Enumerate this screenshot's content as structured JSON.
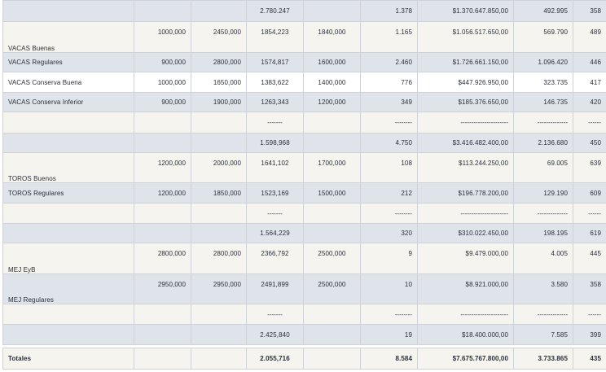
{
  "rows": {
    "r1": {
      "name": "",
      "c1": "",
      "c2": "",
      "c3": "2.780.247",
      "c4": "",
      "c5": "1.378",
      "c6": "$1.370.647.850,00",
      "c7": "492.995",
      "c8": "358"
    },
    "r2": {
      "name": "VACAS Buenas",
      "c1": "1000,000",
      "c2": "2450,000",
      "c3": "1854,223",
      "c4": "1840,000",
      "c5": "1.165",
      "c6": "$1.056.517.650,00",
      "c7": "569.790",
      "c8": "489"
    },
    "r3": {
      "name": "VACAS Regulares",
      "c1": "900,000",
      "c2": "2800,000",
      "c3": "1574,817",
      "c4": "1600,000",
      "c5": "2.460",
      "c6": "$1.726.661.150,00",
      "c7": "1.096.420",
      "c8": "446"
    },
    "r4": {
      "name": "VACAS Conserva Buena",
      "c1": "1000,000",
      "c2": "1650,000",
      "c3": "1383,622",
      "c4": "1400,000",
      "c5": "776",
      "c6": "$447.926.950,00",
      "c7": "323.735",
      "c8": "417"
    },
    "r5": {
      "name": "VACAS Conserva Inferior",
      "c1": "900,000",
      "c2": "1900,000",
      "c3": "1263,343",
      "c4": "1200,000",
      "c5": "349",
      "c6": "$185.376.650,00",
      "c7": "146.735",
      "c8": "420"
    },
    "r6": {
      "name": "",
      "c1": "",
      "c2": "",
      "c3": "-------",
      "c4": "",
      "c5": "--------",
      "c6": "----------------------",
      "c7": "--------------",
      "c8": "------"
    },
    "r7": {
      "name": "",
      "c1": "",
      "c2": "",
      "c3": "1.598,968",
      "c4": "",
      "c5": "4.750",
      "c6": "$3.416.482.400,00",
      "c7": "2.136.680",
      "c8": "450"
    },
    "r8": {
      "name": "TOROS Buenos",
      "c1": "1200,000",
      "c2": "2000,000",
      "c3": "1641,102",
      "c4": "1700,000",
      "c5": "108",
      "c6": "$113.244.250,00",
      "c7": "69.005",
      "c8": "639"
    },
    "r9": {
      "name": "TOROS Regulares",
      "c1": "1200,000",
      "c2": "1850,000",
      "c3": "1523,169",
      "c4": "1500,000",
      "c5": "212",
      "c6": "$196.778.200,00",
      "c7": "129.190",
      "c8": "609"
    },
    "r10": {
      "name": "",
      "c1": "",
      "c2": "",
      "c3": "-------",
      "c4": "",
      "c5": "--------",
      "c6": "----------------------",
      "c7": "--------------",
      "c8": "------"
    },
    "r11": {
      "name": "",
      "c1": "",
      "c2": "",
      "c3": "1.564,229",
      "c4": "",
      "c5": "320",
      "c6": "$310.022.450,00",
      "c7": "198.195",
      "c8": "619"
    },
    "r12": {
      "name": "MEJ EyB",
      "c1": "2800,000",
      "c2": "2800,000",
      "c3": "2366,792",
      "c4": "2500,000",
      "c5": "9",
      "c6": "$9.479.000,00",
      "c7": "4.005",
      "c8": "445"
    },
    "r13": {
      "name": "MEJ Regulares",
      "c1": "2950,000",
      "c2": "2950,000",
      "c3": "2491,899",
      "c4": "2500,000",
      "c5": "10",
      "c6": "$8.921.000,00",
      "c7": "3.580",
      "c8": "358"
    },
    "r14": {
      "name": "",
      "c1": "",
      "c2": "",
      "c3": "-------",
      "c4": "",
      "c5": "--------",
      "c6": "----------------------",
      "c7": "--------------",
      "c8": "------"
    },
    "r15": {
      "name": "",
      "c1": "",
      "c2": "",
      "c3": "2.425,840",
      "c4": "",
      "c5": "19",
      "c6": "$18.400.000,00",
      "c7": "7.585",
      "c8": "399"
    },
    "totals": {
      "name": "Totales",
      "c1": "",
      "c2": "",
      "c3": "2.055,716",
      "c4": "",
      "c5": "8.584",
      "c6": "$7.675.767.800,00",
      "c7": "3.733.865",
      "c8": "435"
    }
  },
  "colors": {
    "subtotal_row": "#dfe3ea",
    "cream_row": "#f5f4ee",
    "white_row": "#ffffff",
    "border": "#cfd3d9",
    "text": "#2b2f38"
  }
}
